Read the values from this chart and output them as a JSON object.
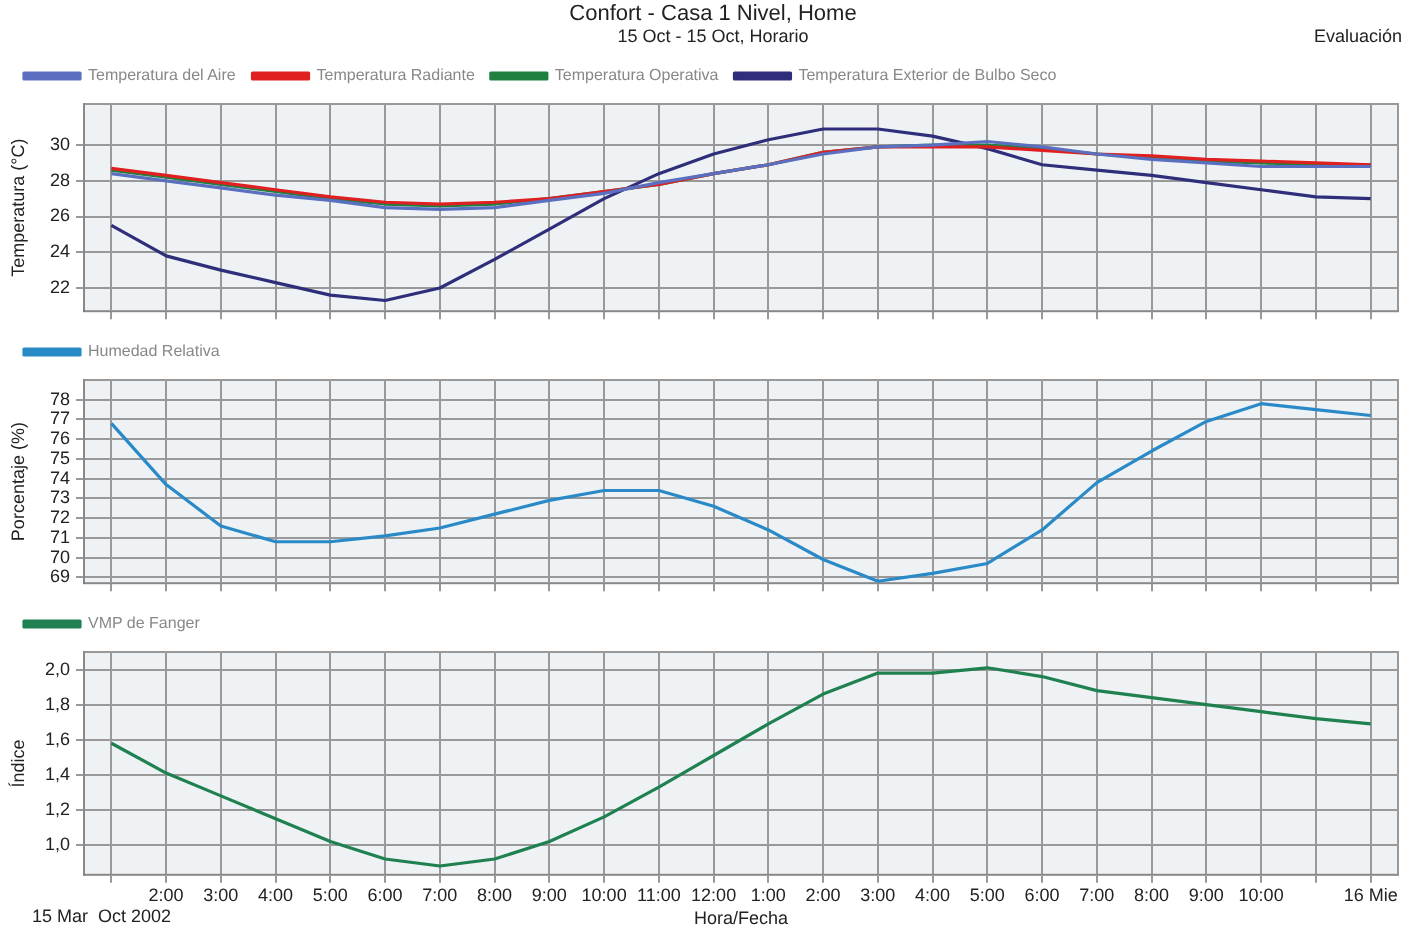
{
  "chart_data": [
    {
      "type": "line",
      "title": "Confort - Casa 1 Nivel, Home",
      "subtitle": "15 Oct - 15 Oct, Horario",
      "annotations": [
        "Evaluación"
      ],
      "ylabel": "Temperatura (°C)",
      "categories": [
        null,
        null,
        null,
        null,
        null,
        null,
        null,
        null,
        null,
        null,
        null,
        null,
        null,
        null,
        null,
        null,
        null,
        null,
        null,
        null,
        null,
        null,
        null,
        null
      ],
      "series": [
        {
          "name": "Temperatura del Aire",
          "color": "#5a6fc0",
          "values": [
            28.4,
            28.0,
            27.6,
            27.2,
            26.9,
            26.5,
            26.4,
            26.5,
            26.9,
            27.3,
            27.9,
            28.4,
            28.9,
            29.5,
            29.9,
            30.0,
            30.2,
            29.9,
            29.5,
            29.2,
            29.0,
            28.8,
            28.8,
            28.8
          ]
        },
        {
          "name": "Temperatura Radiante",
          "color": "#e02020",
          "values": [
            28.7,
            28.3,
            27.9,
            27.5,
            27.1,
            26.8,
            26.7,
            26.8,
            27.0,
            27.4,
            27.8,
            28.4,
            28.9,
            29.6,
            29.9,
            29.9,
            29.9,
            29.7,
            29.5,
            29.4,
            29.2,
            29.1,
            29.0,
            28.9
          ]
        },
        {
          "name": "Temperatura Operativa",
          "color": "#208040",
          "values": [
            28.6,
            28.2,
            27.8,
            27.4,
            27.0,
            26.7,
            26.6,
            26.7,
            27.0,
            27.4,
            27.8,
            28.4,
            28.9,
            29.6,
            29.9,
            30.0,
            30.0,
            29.8,
            29.5,
            29.3,
            29.1,
            29.0,
            28.9,
            28.9
          ]
        },
        {
          "name": "Temperatura Exterior de Bulbo Seco",
          "color": "#2e2e7a",
          "values": [
            25.5,
            23.8,
            23.0,
            22.3,
            21.6,
            21.3,
            22.0,
            23.6,
            25.3,
            27.0,
            28.4,
            29.5,
            30.3,
            30.9,
            30.9,
            30.5,
            29.8,
            28.9,
            28.6,
            28.3,
            27.9,
            27.5,
            27.1,
            27.0
          ]
        }
      ],
      "ylim": [
        20.7,
        32.3
      ],
      "yticks": [
        22,
        24,
        26,
        28,
        30
      ],
      "grid": true,
      "legend": "top left",
      "marker": "none",
      "tick_labels": "y"
    },
    {
      "type": "line",
      "ylabel": "Porcentaje (%)",
      "categories": [
        null,
        null,
        null,
        null,
        null,
        null,
        null,
        null,
        null,
        null,
        null,
        null,
        null,
        null,
        null,
        null,
        null,
        null,
        null,
        null,
        null,
        null,
        null,
        null
      ],
      "series": [
        {
          "name": "Humedad Relativa",
          "color": "#2a8ac8",
          "values": [
            76.8,
            73.7,
            71.6,
            70.8,
            70.8,
            71.1,
            71.5,
            72.2,
            72.9,
            73.4,
            73.4,
            72.6,
            71.4,
            69.9,
            68.8,
            69.2,
            69.7,
            71.4,
            73.8,
            75.4,
            76.9,
            77.8,
            77.5,
            77.2
          ]
        }
      ],
      "ylim": [
        68.7,
        79.0
      ],
      "yticks": [
        69,
        70,
        71,
        72,
        73,
        74,
        75,
        76,
        77,
        78
      ],
      "grid": true,
      "legend": "top left",
      "marker": "none",
      "tick_labels": "y"
    },
    {
      "type": "line",
      "ylabel": "Índice",
      "xlabel": "Hora/Fecha",
      "annotations": [
        "15 Mar  Oct 2002"
      ],
      "categories": [
        null,
        "2:00",
        "3:00",
        "4:00",
        "5:00",
        "6:00",
        "7:00",
        "8:00",
        "9:00",
        "10:00",
        "11:00",
        "12:00",
        "1:00",
        "2:00",
        "3:00",
        "4:00",
        "5:00",
        "6:00",
        "7:00",
        "8:00",
        "9:00",
        "10:00",
        null,
        "16 Mie"
      ],
      "series": [
        {
          "name": "VMP de Fanger",
          "color": "#1f8050",
          "values": [
            1.58,
            1.41,
            1.28,
            1.15,
            1.02,
            0.92,
            0.88,
            0.92,
            1.02,
            1.16,
            1.33,
            1.51,
            1.69,
            1.86,
            1.98,
            1.98,
            2.01,
            1.96,
            1.88,
            1.84,
            1.8,
            1.76,
            1.72,
            1.69
          ]
        }
      ],
      "ylim": [
        0.83,
        2.1
      ],
      "yticks": [
        {
          "value": 1,
          "label": "1,0"
        },
        {
          "value": 1.2,
          "label": "1,2"
        },
        {
          "value": 1.4,
          "label": "1,4"
        },
        {
          "value": 1.6,
          "label": "1,6"
        },
        {
          "value": 1.8,
          "label": "1,8"
        },
        {
          "value": 2,
          "label": "2,0"
        }
      ],
      "grid": true,
      "legend": "top left",
      "marker": "none"
    }
  ]
}
